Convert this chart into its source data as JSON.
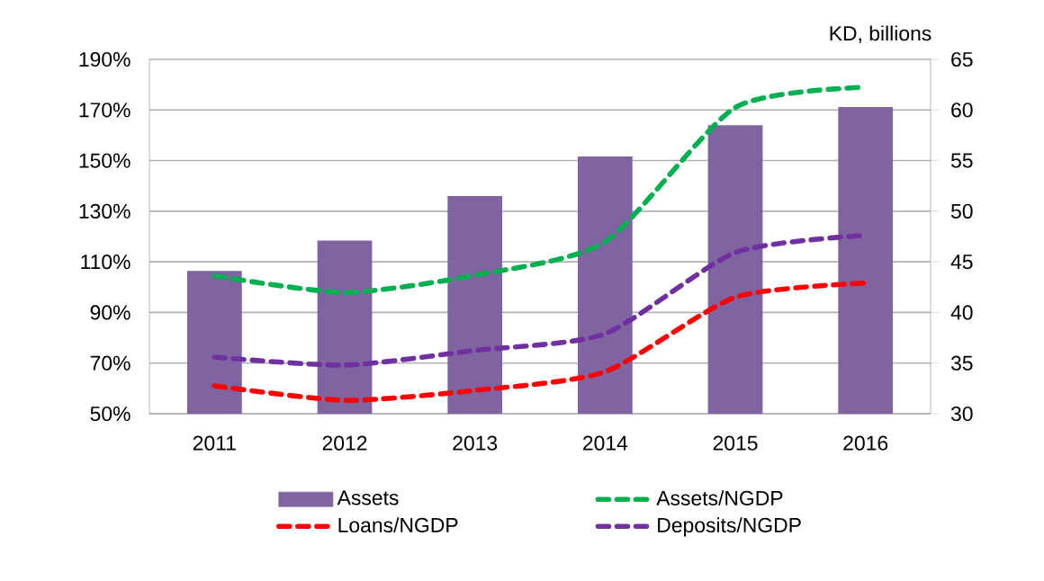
{
  "chart_data": {
    "type": "bar",
    "y2label": "KD, billions",
    "categories": [
      "2011",
      "2012",
      "2013",
      "2014",
      "2015",
      "2016"
    ],
    "series": [
      {
        "name": "Assets",
        "axis": "y2",
        "color": "#8064a2",
        "values": [
          44.1,
          47.1,
          51.5,
          55.4,
          58.5,
          60.3
        ]
      },
      {
        "name": "Assets/NGDP",
        "type": "line",
        "line_style": "dashed",
        "color": "#00b050",
        "values": [
          104.5,
          97.9,
          104.7,
          117.9,
          171,
          179
        ]
      },
      {
        "name": "Loans/NGDP",
        "type": "line",
        "line_style": "dashed",
        "color": "#ff0000",
        "values": [
          61,
          55.3,
          59.2,
          66.6,
          96,
          101.6
        ]
      },
      {
        "name": "Deposits/NGDP",
        "type": "line",
        "line_style": "dashed",
        "color": "#7030a0",
        "values": [
          72.4,
          69.2,
          75,
          81.6,
          113.7,
          120.5
        ]
      }
    ],
    "ylim": [
      50,
      190
    ],
    "yticks": [
      {
        "value": 50,
        "label": "50%"
      },
      {
        "value": 70,
        "label": "70%"
      },
      {
        "value": 90,
        "label": "90%"
      },
      {
        "value": 110,
        "label": "110%"
      },
      {
        "value": 130,
        "label": "130%"
      },
      {
        "value": 150,
        "label": "150%"
      },
      {
        "value": 170,
        "label": "170%"
      },
      {
        "value": 190,
        "label": "190%"
      }
    ],
    "y2lim": [
      30,
      65
    ],
    "y2ticks": [
      30,
      35,
      40,
      45,
      50,
      55,
      60,
      65
    ],
    "grid": "y",
    "legend": "bottom"
  }
}
